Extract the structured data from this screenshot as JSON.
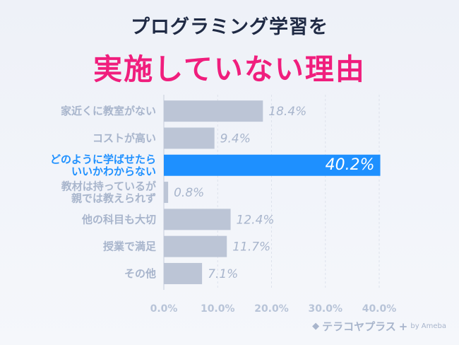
{
  "title_line1": "プログラミング学習を",
  "title_line2": "実施していない理由",
  "logo": {
    "name": "テラコヤプラス",
    "plus": "+",
    "by": "by Ameba"
  },
  "colors": {
    "bar": "#bcc5d6",
    "highlight": "#1e90ff",
    "title_accent": "#f01e7d"
  },
  "chart_data": {
    "type": "bar",
    "orientation": "horizontal",
    "categories": [
      [
        "家近くに教室がない"
      ],
      [
        "コストが高い"
      ],
      [
        "どのように学ばせたら",
        "いいかわからない"
      ],
      [
        "教材は持っているが",
        "親では教えられず"
      ],
      [
        "他の科目も大切"
      ],
      [
        "授業で満足"
      ],
      [
        "その他"
      ]
    ],
    "values": [
      18.4,
      9.4,
      40.2,
      0.8,
      12.4,
      11.7,
      7.1
    ],
    "value_labels": [
      "18.4%",
      "9.4%",
      "40.2%",
      "0.8%",
      "12.4%",
      "11.7%",
      "7.1%"
    ],
    "highlight_index": 2,
    "xlim": [
      0,
      40
    ],
    "xticks": [
      "0.0%",
      "10.0%",
      "20.0%",
      "30.0%",
      "40.0%"
    ],
    "grid": true
  }
}
